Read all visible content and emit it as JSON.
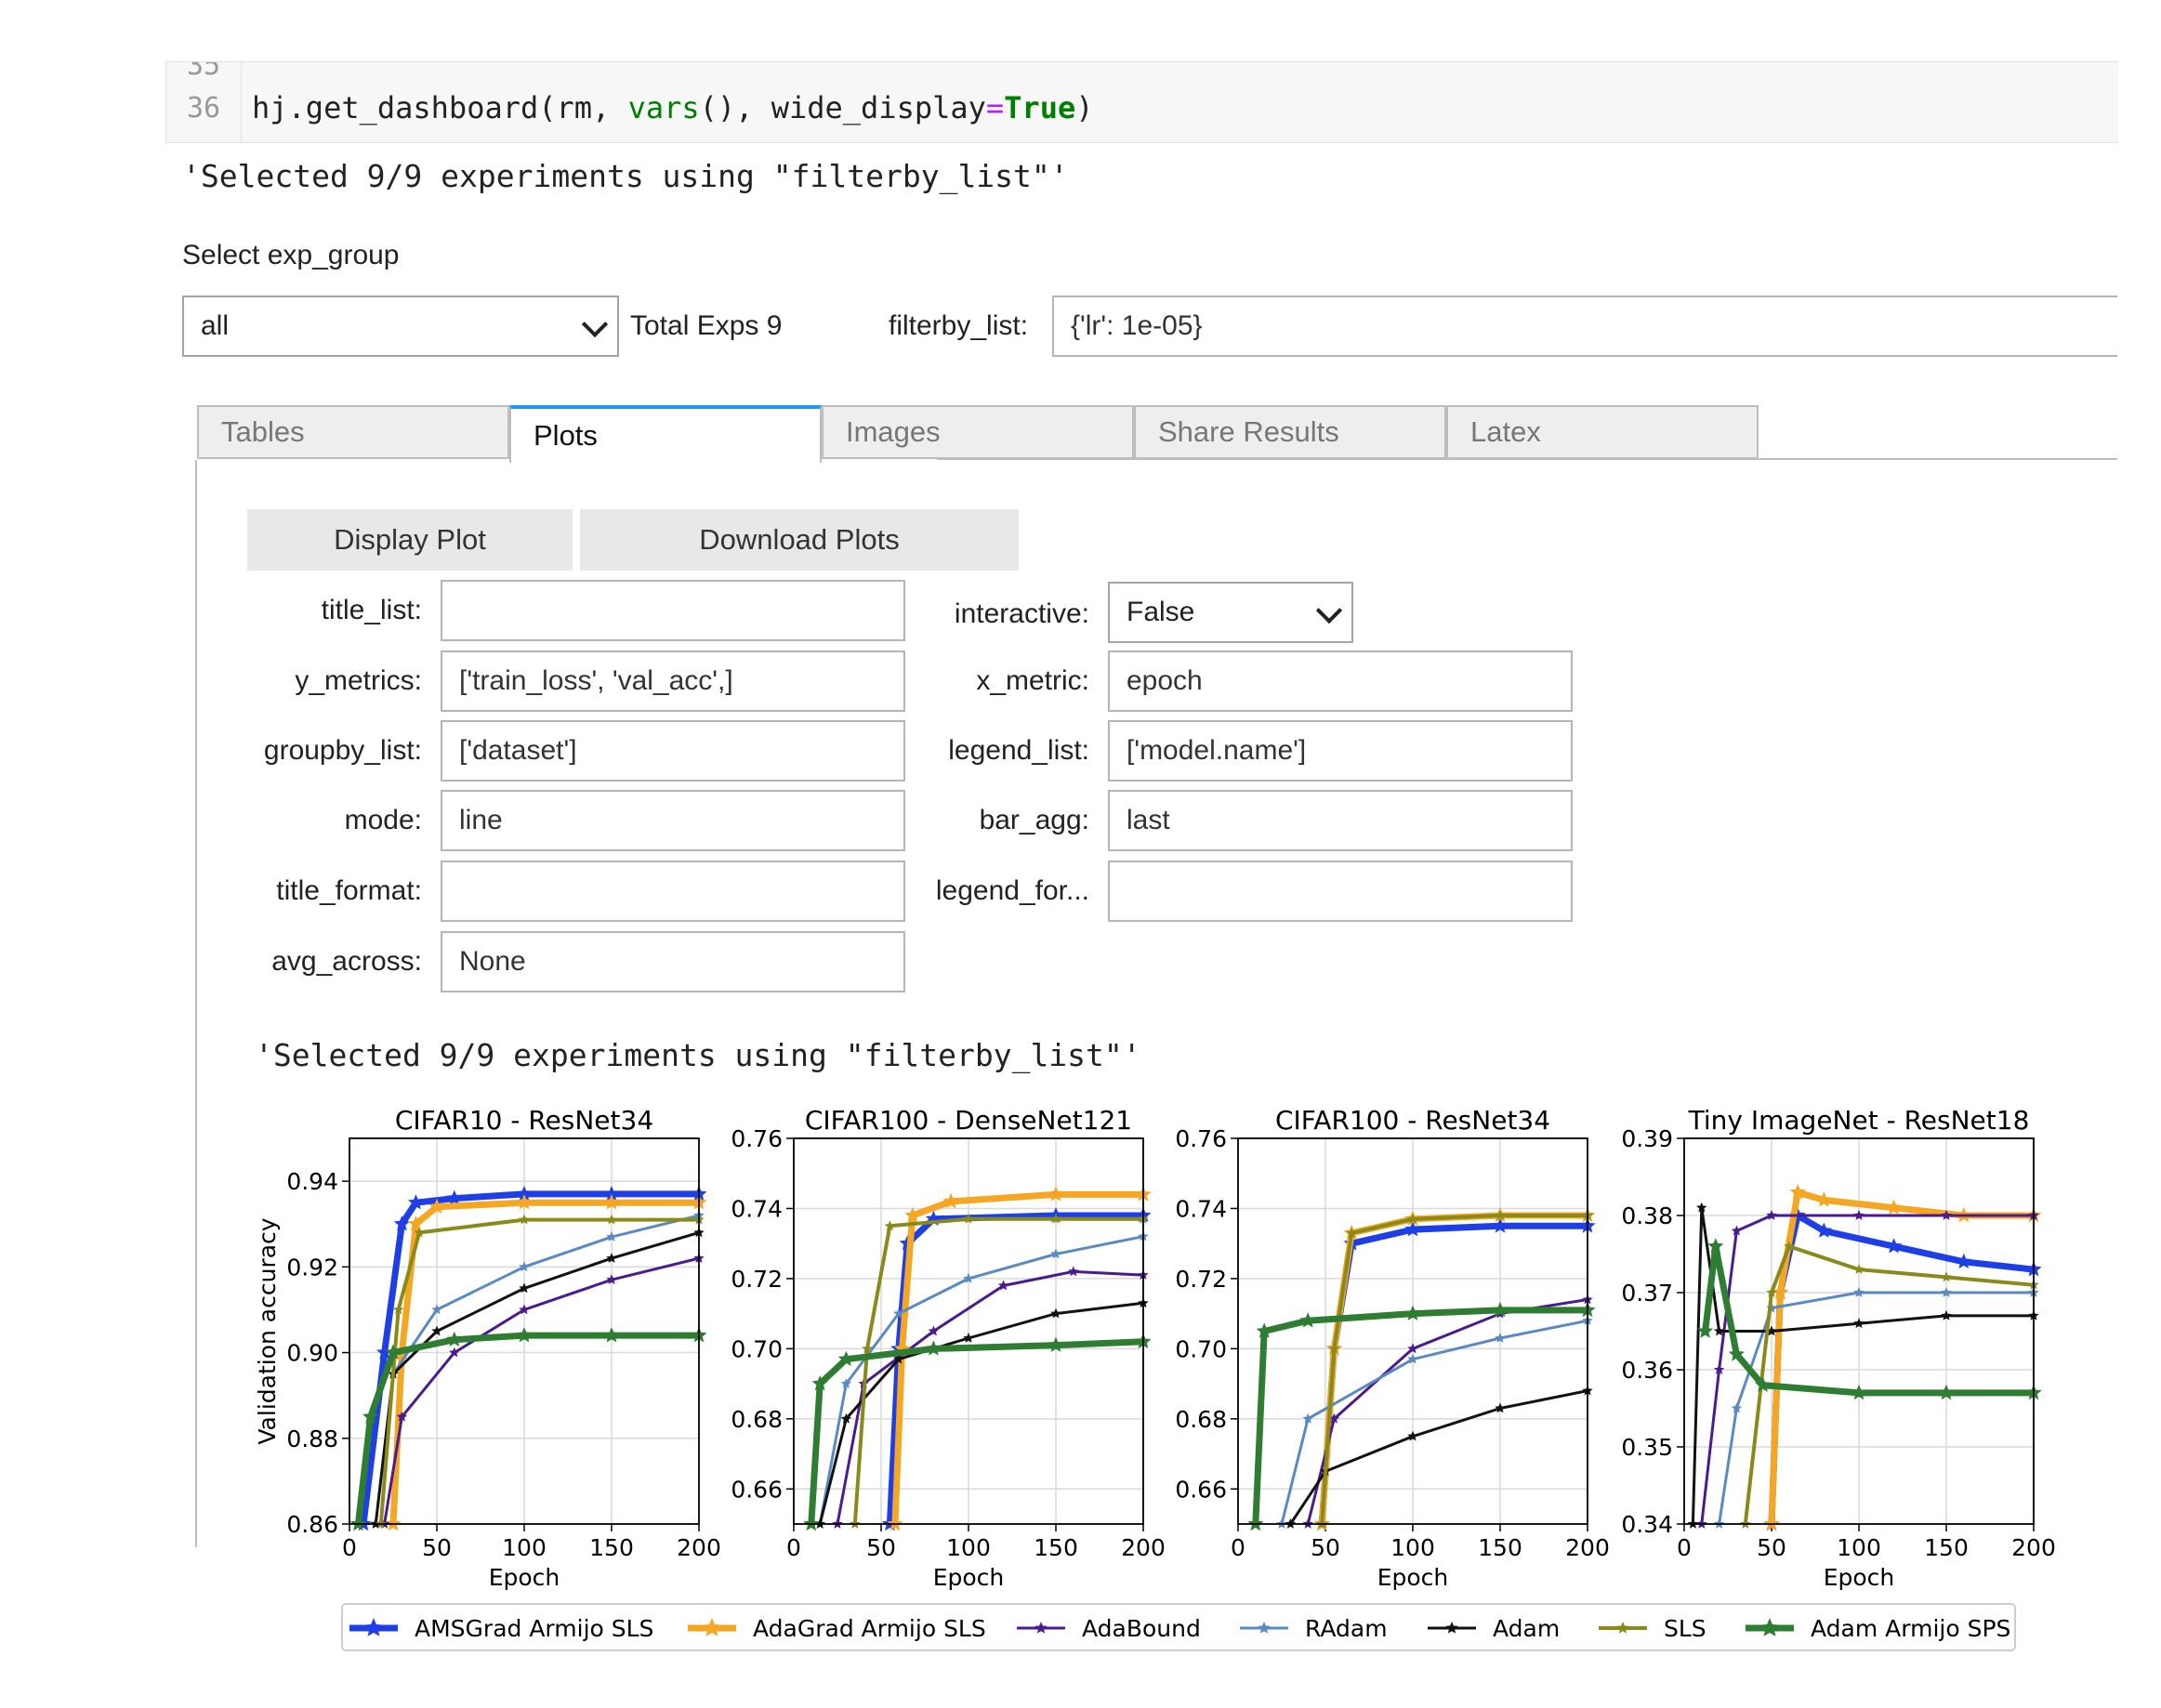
{
  "code": {
    "line_top": "35",
    "line_main": "36",
    "call": "hj.get_dashboard",
    "arg1": "(rm, ",
    "func": "vars",
    "arg2": "(), wide_display",
    "eq": "=",
    "val": "True",
    "close": ")"
  },
  "output_line": "'Selected 9/9 experiments using \"filterby_list\"'",
  "select_label": "Select exp_group",
  "exp_group": {
    "value": "all"
  },
  "total_exps": "Total Exps 9",
  "filterby": {
    "label": "filterby_list:",
    "value": "{'lr': 1e-05}"
  },
  "tabs": [
    "Tables",
    "Plots",
    "Images",
    "Share Results",
    "Latex"
  ],
  "buttons": {
    "display": "Display Plot",
    "download": "Download Plots"
  },
  "form": {
    "title_list": {
      "label": "title_list:",
      "value": ""
    },
    "y_metrics": {
      "label": "y_metrics:",
      "value": "['train_loss', 'val_acc',]"
    },
    "groupby_list": {
      "label": "groupby_list:",
      "value": "['dataset']"
    },
    "mode": {
      "label": "mode:",
      "value": "line"
    },
    "title_format": {
      "label": "title_format:",
      "value": ""
    },
    "avg_across": {
      "label": "avg_across:",
      "value": "None"
    },
    "interactive": {
      "label": "interactive:",
      "value": "False"
    },
    "x_metric": {
      "label": "x_metric:",
      "value": "epoch"
    },
    "legend_list": {
      "label": "legend_list:",
      "value": "['model.name']"
    },
    "bar_agg": {
      "label": "bar_agg:",
      "value": "last"
    },
    "legend_format": {
      "label": "legend_for...",
      "value": ""
    }
  },
  "plot_output_line": "'Selected 9/9 experiments using \"filterby_list\"'",
  "chart_data": [
    {
      "type": "line",
      "title": "CIFAR10 - ResNet34",
      "xlabel": "Epoch",
      "ylabel": "Validation accuracy",
      "xlim": [
        0,
        200
      ],
      "ylim": [
        0.86,
        0.95
      ],
      "xticks": [
        0,
        50,
        100,
        150,
        200
      ],
      "yticks": [
        0.86,
        0.88,
        0.9,
        0.92,
        0.94
      ],
      "grid": true,
      "series": [
        {
          "name": "AMSGrad Armijo SLS",
          "color": "#1f3fe6",
          "points": [
            [
              8,
              0.86
            ],
            [
              20,
              0.9
            ],
            [
              30,
              0.93
            ],
            [
              38,
              0.935
            ],
            [
              60,
              0.936
            ],
            [
              100,
              0.937
            ],
            [
              150,
              0.937
            ],
            [
              200,
              0.937
            ]
          ]
        },
        {
          "name": "AdaGrad Armijo SLS",
          "color": "#f5a623",
          "points": [
            [
              25,
              0.86
            ],
            [
              30,
              0.9
            ],
            [
              38,
              0.93
            ],
            [
              50,
              0.934
            ],
            [
              100,
              0.935
            ],
            [
              150,
              0.935
            ],
            [
              200,
              0.935
            ]
          ]
        },
        {
          "name": "AdaBound",
          "color": "#4b1a8f",
          "points": [
            [
              20,
              0.86
            ],
            [
              30,
              0.885
            ],
            [
              60,
              0.9
            ],
            [
              100,
              0.91
            ],
            [
              150,
              0.917
            ],
            [
              200,
              0.922
            ]
          ]
        },
        {
          "name": "RAdam",
          "color": "#5b8ac2",
          "points": [
            [
              15,
              0.86
            ],
            [
              25,
              0.895
            ],
            [
              50,
              0.91
            ],
            [
              100,
              0.92
            ],
            [
              150,
              0.927
            ],
            [
              200,
              0.932
            ]
          ]
        },
        {
          "name": "Adam",
          "color": "#111111",
          "points": [
            [
              15,
              0.86
            ],
            [
              25,
              0.895
            ],
            [
              50,
              0.905
            ],
            [
              100,
              0.915
            ],
            [
              150,
              0.922
            ],
            [
              200,
              0.928
            ]
          ]
        },
        {
          "name": "SLS",
          "color": "#8a8a1a",
          "points": [
            [
              18,
              0.86
            ],
            [
              28,
              0.91
            ],
            [
              40,
              0.928
            ],
            [
              100,
              0.931
            ],
            [
              150,
              0.931
            ],
            [
              200,
              0.931
            ]
          ]
        },
        {
          "name": "Adam Armijo SPS",
          "color": "#2e7d32",
          "points": [
            [
              5,
              0.86
            ],
            [
              12,
              0.885
            ],
            [
              25,
              0.9
            ],
            [
              60,
              0.903
            ],
            [
              100,
              0.904
            ],
            [
              150,
              0.904
            ],
            [
              200,
              0.904
            ]
          ]
        }
      ]
    },
    {
      "type": "line",
      "title": "CIFAR100 - DenseNet121",
      "xlabel": "Epoch",
      "ylabel": "",
      "xlim": [
        0,
        200
      ],
      "ylim": [
        0.65,
        0.76
      ],
      "xticks": [
        0,
        50,
        100,
        150,
        200
      ],
      "yticks": [
        0.66,
        0.68,
        0.7,
        0.72,
        0.74,
        0.76
      ],
      "grid": true,
      "series": [
        {
          "name": "AMSGrad Armijo SLS",
          "color": "#1f3fe6",
          "points": [
            [
              55,
              0.65
            ],
            [
              60,
              0.7
            ],
            [
              65,
              0.73
            ],
            [
              80,
              0.737
            ],
            [
              150,
              0.738
            ],
            [
              200,
              0.738
            ]
          ]
        },
        {
          "name": "AdaGrad Armijo SLS",
          "color": "#f5a623",
          "points": [
            [
              58,
              0.65
            ],
            [
              62,
              0.7
            ],
            [
              68,
              0.738
            ],
            [
              90,
              0.742
            ],
            [
              150,
              0.744
            ],
            [
              200,
              0.744
            ]
          ]
        },
        {
          "name": "AdaBound",
          "color": "#4b1a8f",
          "points": [
            [
              25,
              0.65
            ],
            [
              40,
              0.69
            ],
            [
              80,
              0.705
            ],
            [
              120,
              0.718
            ],
            [
              160,
              0.722
            ],
            [
              200,
              0.721
            ]
          ]
        },
        {
          "name": "RAdam",
          "color": "#5b8ac2",
          "points": [
            [
              15,
              0.65
            ],
            [
              30,
              0.69
            ],
            [
              60,
              0.71
            ],
            [
              100,
              0.72
            ],
            [
              150,
              0.727
            ],
            [
              200,
              0.732
            ]
          ]
        },
        {
          "name": "Adam",
          "color": "#111111",
          "points": [
            [
              15,
              0.65
            ],
            [
              30,
              0.68
            ],
            [
              60,
              0.697
            ],
            [
              100,
              0.703
            ],
            [
              150,
              0.71
            ],
            [
              200,
              0.713
            ]
          ]
        },
        {
          "name": "SLS",
          "color": "#8a8a1a",
          "points": [
            [
              35,
              0.65
            ],
            [
              42,
              0.7
            ],
            [
              55,
              0.735
            ],
            [
              100,
              0.737
            ],
            [
              150,
              0.737
            ],
            [
              200,
              0.737
            ]
          ]
        },
        {
          "name": "Adam Armijo SPS",
          "color": "#2e7d32",
          "points": [
            [
              10,
              0.65
            ],
            [
              15,
              0.69
            ],
            [
              30,
              0.697
            ],
            [
              80,
              0.7
            ],
            [
              150,
              0.701
            ],
            [
              200,
              0.702
            ]
          ]
        }
      ]
    },
    {
      "type": "line",
      "title": "CIFAR100 - ResNet34",
      "xlabel": "Epoch",
      "ylabel": "",
      "xlim": [
        0,
        200
      ],
      "ylim": [
        0.65,
        0.76
      ],
      "xticks": [
        0,
        50,
        100,
        150,
        200
      ],
      "yticks": [
        0.66,
        0.68,
        0.7,
        0.72,
        0.74,
        0.76
      ],
      "grid": true,
      "series": [
        {
          "name": "AMSGrad Armijo SLS",
          "color": "#1f3fe6",
          "points": [
            [
              48,
              0.65
            ],
            [
              55,
              0.7
            ],
            [
              65,
              0.73
            ],
            [
              100,
              0.734
            ],
            [
              150,
              0.735
            ],
            [
              200,
              0.735
            ]
          ]
        },
        {
          "name": "AdaGrad Armijo SLS",
          "color": "#f5a623",
          "points": [
            [
              48,
              0.65
            ],
            [
              55,
              0.7
            ],
            [
              65,
              0.733
            ],
            [
              100,
              0.737
            ],
            [
              150,
              0.738
            ],
            [
              200,
              0.738
            ]
          ]
        },
        {
          "name": "AdaBound",
          "color": "#4b1a8f",
          "points": [
            [
              40,
              0.65
            ],
            [
              55,
              0.68
            ],
            [
              100,
              0.7
            ],
            [
              150,
              0.71
            ],
            [
              200,
              0.714
            ]
          ]
        },
        {
          "name": "RAdam",
          "color": "#5b8ac2",
          "points": [
            [
              25,
              0.65
            ],
            [
              40,
              0.68
            ],
            [
              100,
              0.697
            ],
            [
              150,
              0.703
            ],
            [
              200,
              0.708
            ]
          ]
        },
        {
          "name": "Adam",
          "color": "#111111",
          "points": [
            [
              30,
              0.65
            ],
            [
              50,
              0.665
            ],
            [
              100,
              0.675
            ],
            [
              150,
              0.683
            ],
            [
              200,
              0.688
            ]
          ]
        },
        {
          "name": "SLS",
          "color": "#8a8a1a",
          "points": [
            [
              48,
              0.65
            ],
            [
              55,
              0.7
            ],
            [
              65,
              0.733
            ],
            [
              100,
              0.737
            ],
            [
              150,
              0.738
            ],
            [
              200,
              0.738
            ]
          ]
        },
        {
          "name": "Adam Armijo SPS",
          "color": "#2e7d32",
          "points": [
            [
              10,
              0.65
            ],
            [
              15,
              0.705
            ],
            [
              40,
              0.708
            ],
            [
              100,
              0.71
            ],
            [
              150,
              0.711
            ],
            [
              200,
              0.711
            ]
          ]
        }
      ]
    },
    {
      "type": "line",
      "title": "Tiny ImageNet - ResNet18",
      "xlabel": "Epoch",
      "ylabel": "",
      "xlim": [
        0,
        200
      ],
      "ylim": [
        0.34,
        0.39
      ],
      "xticks": [
        0,
        50,
        100,
        150,
        200
      ],
      "yticks": [
        0.34,
        0.35,
        0.36,
        0.37,
        0.38,
        0.39
      ],
      "grid": true,
      "series": [
        {
          "name": "AMSGrad Armijo SLS",
          "color": "#1f3fe6",
          "points": [
            [
              50,
              0.34
            ],
            [
              55,
              0.37
            ],
            [
              65,
              0.38
            ],
            [
              80,
              0.378
            ],
            [
              120,
              0.376
            ],
            [
              160,
              0.374
            ],
            [
              200,
              0.373
            ]
          ]
        },
        {
          "name": "AdaGrad Armijo SLS",
          "color": "#f5a623",
          "points": [
            [
              50,
              0.34
            ],
            [
              55,
              0.37
            ],
            [
              65,
              0.383
            ],
            [
              80,
              0.382
            ],
            [
              120,
              0.381
            ],
            [
              160,
              0.38
            ],
            [
              200,
              0.38
            ]
          ]
        },
        {
          "name": "AdaBound",
          "color": "#4b1a8f",
          "points": [
            [
              10,
              0.34
            ],
            [
              20,
              0.36
            ],
            [
              30,
              0.378
            ],
            [
              50,
              0.38
            ],
            [
              100,
              0.38
            ],
            [
              150,
              0.38
            ],
            [
              200,
              0.38
            ]
          ]
        },
        {
          "name": "RAdam",
          "color": "#5b8ac2",
          "points": [
            [
              20,
              0.34
            ],
            [
              30,
              0.355
            ],
            [
              50,
              0.368
            ],
            [
              100,
              0.37
            ],
            [
              150,
              0.37
            ],
            [
              200,
              0.37
            ]
          ]
        },
        {
          "name": "Adam",
          "color": "#111111",
          "points": [
            [
              5,
              0.34
            ],
            [
              10,
              0.381
            ],
            [
              20,
              0.365
            ],
            [
              50,
              0.365
            ],
            [
              100,
              0.366
            ],
            [
              150,
              0.367
            ],
            [
              200,
              0.367
            ]
          ]
        },
        {
          "name": "SLS",
          "color": "#8a8a1a",
          "points": [
            [
              35,
              0.34
            ],
            [
              50,
              0.37
            ],
            [
              60,
              0.376
            ],
            [
              100,
              0.373
            ],
            [
              150,
              0.372
            ],
            [
              200,
              0.371
            ]
          ]
        },
        {
          "name": "Adam Armijo SPS",
          "color": "#2e7d32",
          "points": [
            [
              12,
              0.365
            ],
            [
              18,
              0.376
            ],
            [
              30,
              0.362
            ],
            [
              45,
              0.358
            ],
            [
              100,
              0.357
            ],
            [
              150,
              0.357
            ],
            [
              200,
              0.357
            ]
          ]
        }
      ]
    }
  ],
  "legend": [
    "AMSGrad Armijo SLS",
    "AdaGrad Armijo SLS",
    "AdaBound",
    "RAdam",
    "Adam",
    "SLS",
    "Adam Armijo SPS"
  ],
  "legend_colors": [
    "#1f3fe6",
    "#f5a623",
    "#4b1a8f",
    "#5b8ac2",
    "#111111",
    "#8a8a1a",
    "#2e7d32"
  ]
}
